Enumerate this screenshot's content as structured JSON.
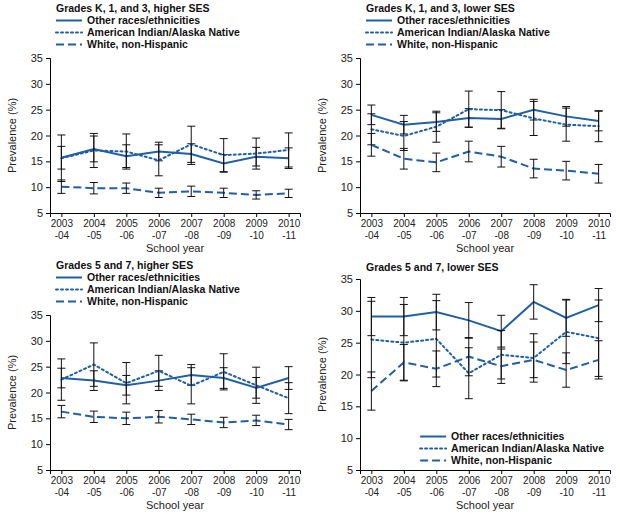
{
  "chart_data": [
    {
      "type": "line",
      "title": "Grades K, 1, and 3, higher SES",
      "x_label": "School year",
      "y_label": "Prevalence (%)",
      "categories": [
        "2003-04",
        "2004-05",
        "2005-06",
        "2006-07",
        "2007-08",
        "2008-09",
        "2009-10",
        "2010-11"
      ],
      "ylim": [
        5,
        35
      ],
      "yticks": [
        5,
        10,
        15,
        20,
        25,
        30,
        35
      ],
      "legend": "top-left",
      "series": [
        {
          "name": "Other races/ethnicities",
          "color": "#1f5fa6",
          "line_style": "solid",
          "values": [
            15.7,
            17.4,
            16.0,
            16.9,
            16.4,
            14.6,
            15.9,
            15.6
          ],
          "errors": [
            2.2,
            2.5,
            2.2,
            1.8,
            2.0,
            1.7,
            1.8,
            2.0
          ]
        },
        {
          "name": "American Indian/Alaska Native",
          "color": "#1f5fa6",
          "line_style": "dotted",
          "values": [
            15.6,
            17.1,
            16.9,
            15.2,
            18.3,
            16.2,
            16.5,
            17.2
          ],
          "errors": [
            4.5,
            3.3,
            3.4,
            3.0,
            3.5,
            3.2,
            3.0,
            3.3
          ]
        },
        {
          "name": "White, non-Hispanic",
          "color": "#1f5fa6",
          "line_style": "dashed",
          "values": [
            10.1,
            9.8,
            9.8,
            8.9,
            9.2,
            8.9,
            8.5,
            8.8
          ],
          "errors": [
            1.3,
            1.1,
            1.0,
            0.9,
            1.0,
            0.9,
            0.8,
            0.8
          ]
        }
      ]
    },
    {
      "type": "line",
      "title": "Grades K, 1, and 3, lower SES",
      "x_label": "School year",
      "y_label": "Prevalence (%)",
      "categories": [
        "2003-04",
        "2004-05",
        "2005-06",
        "2006-07",
        "2007-08",
        "2008-09",
        "2009-10",
        "2010-11"
      ],
      "ylim": [
        5,
        35
      ],
      "yticks": [
        5,
        10,
        15,
        20,
        25,
        30,
        35
      ],
      "legend": "top-left",
      "series": [
        {
          "name": "Other races/ethnicities",
          "color": "#1f5fa6",
          "line_style": "solid",
          "values": [
            24.0,
            22.1,
            22.6,
            23.4,
            23.2,
            25.0,
            23.7,
            22.8
          ],
          "errors": [
            1.9,
            1.8,
            1.8,
            1.8,
            1.8,
            2.0,
            1.9,
            1.9
          ]
        },
        {
          "name": "American Indian/Alaska Native",
          "color": "#1f5fa6",
          "line_style": "dotted",
          "values": [
            21.2,
            19.9,
            21.7,
            25.1,
            24.9,
            23.3,
            22.1,
            21.8
          ],
          "errors": [
            3.0,
            2.8,
            3.0,
            3.5,
            3.6,
            3.3,
            3.2,
            3.0
          ]
        },
        {
          "name": "White, non-Hispanic",
          "color": "#1f5fa6",
          "line_style": "dashed",
          "values": [
            18.2,
            15.5,
            14.8,
            16.9,
            15.9,
            13.6,
            13.2,
            12.6
          ],
          "errors": [
            2.2,
            2.0,
            1.8,
            2.0,
            2.0,
            1.8,
            1.8,
            1.8
          ]
        }
      ]
    },
    {
      "type": "line",
      "title": "Grades 5 and 7, higher SES",
      "x_label": "School year",
      "y_label": "Prevalence (%)",
      "categories": [
        "2003-04",
        "2004-05",
        "2005-06",
        "2006-07",
        "2007-08",
        "2008-09",
        "2009-10",
        "2010-11"
      ],
      "ylim": [
        5,
        35
      ],
      "yticks": [
        5,
        10,
        15,
        20,
        25,
        30,
        35
      ],
      "legend": "top-left",
      "series": [
        {
          "name": "Other races/ethnicities",
          "color": "#1f5fa6",
          "line_style": "solid",
          "values": [
            22.8,
            22.3,
            21.4,
            22.3,
            23.4,
            22.8,
            20.9,
            22.8
          ],
          "errors": [
            1.9,
            1.9,
            1.9,
            1.9,
            2.0,
            2.0,
            2.0,
            2.2
          ]
        },
        {
          "name": "American Indian/Alaska Native",
          "color": "#1f5fa6",
          "line_style": "dotted",
          "values": [
            22.5,
            25.4,
            21.8,
            24.2,
            21.3,
            24.0,
            21.4,
            18.9
          ],
          "errors": [
            4.0,
            4.2,
            4.0,
            3.0,
            3.5,
            3.5,
            3.5,
            3.0
          ]
        },
        {
          "name": "White, non-Hispanic",
          "color": "#1f5fa6",
          "line_style": "dashed",
          "values": [
            16.3,
            15.3,
            15.0,
            15.3,
            14.8,
            14.2,
            14.6,
            13.8
          ],
          "errors": [
            1.2,
            1.1,
            1.2,
            1.2,
            1.0,
            1.0,
            1.0,
            1.0
          ]
        }
      ]
    },
    {
      "type": "line",
      "title": "Grades 5 and 7, lower SES",
      "x_label": "School year",
      "y_label": "Prevalence (%)",
      "categories": [
        "2003-04",
        "2004-05",
        "2005-06",
        "2006-07",
        "2007-08",
        "2008-09",
        "2009-10",
        "2010-11"
      ],
      "ylim": [
        5,
        35
      ],
      "yticks": [
        5,
        10,
        15,
        20,
        25,
        30,
        35
      ],
      "legend": "bottom-right",
      "series": [
        {
          "name": "Other races/ethnicities",
          "color": "#1f5fa6",
          "line_style": "solid",
          "values": [
            29.1,
            29.1,
            29.8,
            28.5,
            26.8,
            31.4,
            28.9,
            30.9
          ],
          "errors": [
            3.0,
            3.0,
            2.8,
            2.8,
            2.5,
            2.7,
            2.9,
            2.6
          ]
        },
        {
          "name": "American Indian/Alaska Native",
          "color": "#1f5fa6",
          "line_style": "dotted",
          "values": [
            25.5,
            25.0,
            25.6,
            20.2,
            23.1,
            22.6,
            26.7,
            25.7
          ],
          "errors": [
            6.0,
            6.0,
            6.0,
            4.0,
            3.8,
            3.8,
            5.0,
            6.0
          ]
        },
        {
          "name": "White, non-Hispanic",
          "color": "#1f5fa6",
          "line_style": "dashed",
          "values": [
            17.4,
            21.9,
            20.9,
            22.8,
            21.3,
            22.3,
            20.7,
            22.3
          ],
          "errors": [
            3.0,
            2.8,
            2.8,
            3.0,
            2.7,
            2.8,
            2.7,
            3.0
          ]
        }
      ]
    }
  ]
}
